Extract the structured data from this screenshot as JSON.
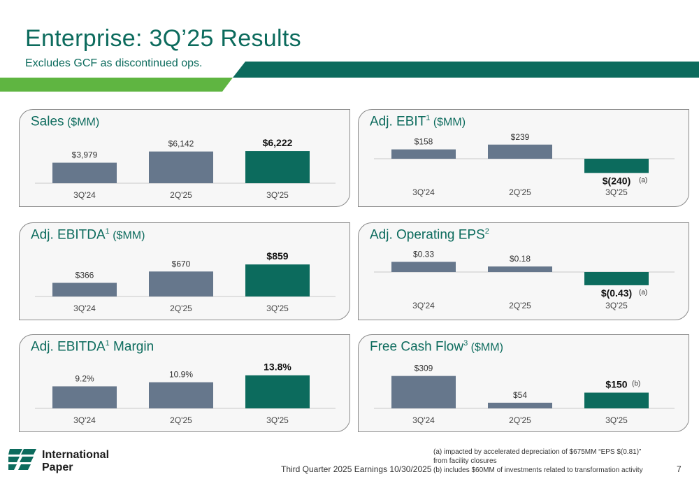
{
  "header": {
    "title": "Enterprise: 3Q’25 Results",
    "subtitle": "Excludes GCF as discontinued ops."
  },
  "colors": {
    "green_dark": "#0c6b5d",
    "green_light": "#5fb541",
    "bar_gray": "#66778c",
    "bar_teal": "#0c6b5d"
  },
  "chart_data": [
    {
      "id": "sales",
      "type": "bar",
      "title": "Sales",
      "title_sup": "",
      "unit": " ($MM)",
      "categories": [
        "3Q'24",
        "2Q'25",
        "3Q'25"
      ],
      "values": [
        3979,
        6142,
        6222
      ],
      "labels": [
        "$3,979",
        "$6,142",
        "$6,222"
      ],
      "notes": [
        "",
        "",
        ""
      ],
      "ylim": [
        0,
        6500
      ]
    },
    {
      "id": "ebit",
      "type": "bar",
      "title": "Adj. EBIT",
      "title_sup": "1",
      "unit": " ($MM)",
      "categories": [
        "3Q'24",
        "2Q'25",
        "3Q'25"
      ],
      "values": [
        158,
        239,
        -240
      ],
      "labels": [
        "$158",
        "$239",
        "$(240)"
      ],
      "notes": [
        "",
        "",
        "(a)"
      ],
      "ylim": [
        -260,
        260
      ]
    },
    {
      "id": "ebitda",
      "type": "bar",
      "title": "Adj. EBITDA",
      "title_sup": "1",
      "unit": " ($MM)",
      "categories": [
        "3Q'24",
        "2Q'25",
        "3Q'25"
      ],
      "values": [
        366,
        670,
        859
      ],
      "labels": [
        "$366",
        "$670",
        "$859"
      ],
      "notes": [
        "",
        "",
        ""
      ],
      "ylim": [
        0,
        900
      ]
    },
    {
      "id": "eps",
      "type": "bar",
      "title": "Adj. Operating EPS",
      "title_sup": "2",
      "unit": "",
      "categories": [
        "3Q'24",
        "2Q'25",
        "3Q'25"
      ],
      "values": [
        0.33,
        0.18,
        -0.43
      ],
      "labels": [
        "$0.33",
        "$0.18",
        "$(0.43)"
      ],
      "notes": [
        "",
        "",
        "(a)"
      ],
      "ylim": [
        -0.5,
        0.5
      ]
    },
    {
      "id": "margin",
      "type": "bar",
      "title": "Adj. EBITDA",
      "title_sup": "1",
      "unit": " Margin",
      "categories": [
        "3Q'24",
        "2Q'25",
        "3Q'25"
      ],
      "values": [
        9.2,
        10.9,
        13.8
      ],
      "labels": [
        "9.2%",
        "10.9%",
        "13.8%"
      ],
      "notes": [
        "",
        "",
        ""
      ],
      "ylim": [
        0,
        14
      ]
    },
    {
      "id": "fcf",
      "type": "bar",
      "title": "Free Cash Flow",
      "title_sup": "3",
      "unit": " ($MM)",
      "categories": [
        "3Q'24",
        "2Q'25",
        "3Q'25"
      ],
      "values": [
        309,
        54,
        150
      ],
      "labels": [
        "$309",
        "$54",
        "$150"
      ],
      "notes": [
        "",
        "",
        "(b)"
      ],
      "ylim": [
        0,
        320
      ]
    }
  ],
  "footer": {
    "logo_line1": "International",
    "logo_line2": "Paper",
    "center_text": "Third Quarter 2025 Earnings 10/30/2025",
    "footnote_a": "(a) impacted by accelerated depreciation of $675MM “EPS $(0.81)” from facility  closures",
    "footnote_b": "(b) includes $60MM of investments related to transformation activity",
    "page_number": "7"
  }
}
